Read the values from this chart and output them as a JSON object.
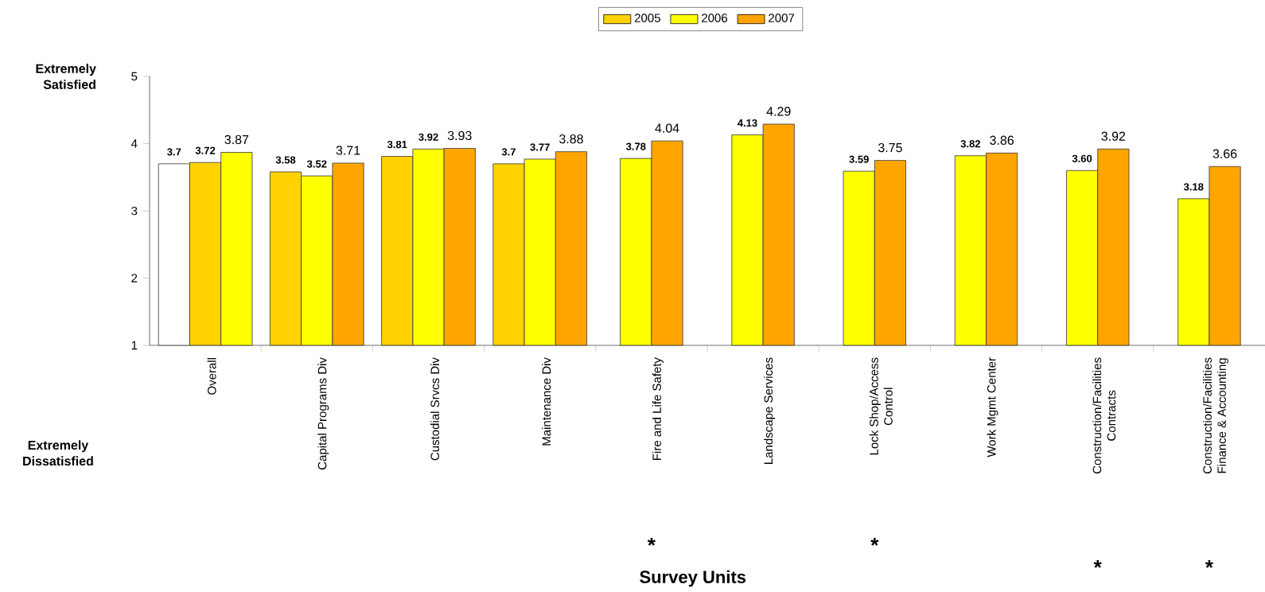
{
  "chart_data": {
    "type": "bar",
    "categories": [
      "Overall",
      "Capital Programs Div",
      "Custodial Srvcs Div",
      "Maintenance Div",
      "Fire and Life Safety",
      "Landscape Services",
      "Lock Shop/Access Control",
      "Work Mgmt Center",
      "Construction/Facilities Contracts",
      "Construction/Facilities Finance & Accounting"
    ],
    "series": [
      {
        "name": "2005",
        "color": "#ffd200",
        "colors": [
          "#ffffff",
          "#ffd200",
          "#ffd200",
          "#ffd200",
          "#ffd200",
          "#ffd200",
          "#ffd200",
          "#ffd200",
          "#ffd200",
          "#ffd200"
        ],
        "values": [
          3.7,
          3.58,
          3.81,
          3.7,
          null,
          null,
          null,
          null,
          null,
          null
        ],
        "value_labels": [
          "3.7",
          "3.58",
          "3.81",
          "3.7",
          null,
          null,
          null,
          null,
          null,
          null
        ]
      },
      {
        "name": "2006",
        "color": "#ffff00",
        "colors": [
          "#ffd200",
          "#ffff00",
          "#ffff00",
          "#ffff00",
          "#ffff00",
          "#ffff00",
          "#ffff00",
          "#ffff00",
          "#ffff00",
          "#ffff00"
        ],
        "values": [
          3.72,
          3.52,
          3.92,
          3.77,
          3.78,
          4.13,
          3.59,
          3.82,
          3.6,
          3.18
        ],
        "value_labels": [
          "3.72",
          "3.52",
          "3.92",
          "3.77",
          "3.78",
          "4.13",
          "3.59",
          "3.82",
          "3.60",
          "3.18"
        ]
      },
      {
        "name": "2007",
        "color": "#ffa500",
        "colors": [
          "#ffff00",
          "#ffa500",
          "#ffa500",
          "#ffa500",
          "#ffa500",
          "#ffa500",
          "#ffa500",
          "#ffa500",
          "#ffa500",
          "#ffa500"
        ],
        "values": [
          3.87,
          3.71,
          3.93,
          3.88,
          4.04,
          4.29,
          3.75,
          3.86,
          3.92,
          3.66
        ],
        "value_labels": [
          "3.87",
          "3.71",
          "3.93",
          "3.88",
          "4.04",
          "4.29",
          "3.75",
          "3.86",
          "3.92",
          "3.66"
        ]
      }
    ],
    "ylim": [
      1,
      5
    ],
    "yticks": [
      1,
      2,
      3,
      4,
      5
    ],
    "grid": false,
    "legend": "top",
    "annotations": [
      "Extremely Satisfied",
      "Extremely Dissatisfied",
      "*",
      "*",
      "*",
      "*",
      "Survey Units"
    ]
  }
}
